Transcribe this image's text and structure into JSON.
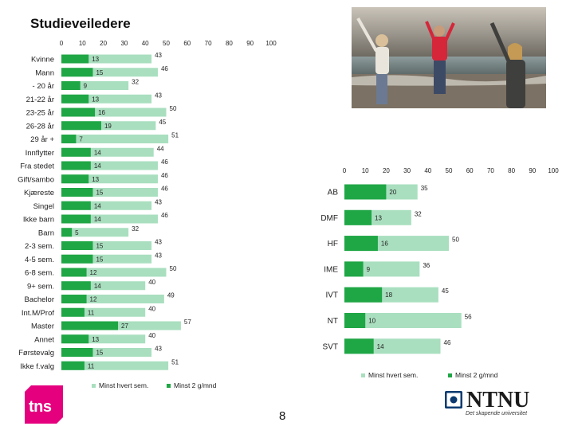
{
  "page_title": "Studieveiledere",
  "page_number": "8",
  "logos": {
    "tns": "tns",
    "ntnu": "NTNU",
    "ntnu_tagline": "Det skapende universitet"
  },
  "colors": {
    "light": "#a9dfbf",
    "dark": "#1fa645"
  },
  "chart_data": [
    {
      "type": "bar",
      "orientation": "horizontal",
      "layout": "overlaid",
      "xlim": [
        0,
        100
      ],
      "xticks": [
        0,
        10,
        20,
        30,
        40,
        50,
        60,
        70,
        80,
        90,
        100
      ],
      "categories": [
        "Kvinne",
        "Mann",
        "- 20 år",
        "21-22 år",
        "23-25 år",
        "26-28 år",
        "29 år +",
        "Innflytter",
        "Fra stedet",
        "Gift/sambo",
        "Kjæreste",
        "Singel",
        "Ikke barn",
        "Barn",
        "2-3 sem.",
        "4-5 sem.",
        "6-8 sem.",
        "9+ sem.",
        "Bachelor",
        "Int.M/Prof",
        "Master",
        "Annet",
        "Førstevalg",
        "Ikke f.valg"
      ],
      "series": [
        {
          "name": "Minst hvert sem.",
          "values": [
            43,
            46,
            32,
            43,
            50,
            45,
            51,
            44,
            46,
            46,
            46,
            43,
            46,
            32,
            43,
            43,
            50,
            40,
            49,
            40,
            57,
            40,
            43,
            51
          ]
        },
        {
          "name": "Minst 2 g/mnd",
          "values": [
            13,
            15,
            9,
            13,
            16,
            19,
            7,
            14,
            14,
            13,
            15,
            14,
            14,
            5,
            15,
            15,
            12,
            14,
            12,
            11,
            27,
            13,
            15,
            11
          ]
        }
      ],
      "legend": [
        "Minst hvert sem.",
        "Minst 2 g/mnd"
      ]
    },
    {
      "type": "bar",
      "orientation": "horizontal",
      "layout": "overlaid",
      "xlim": [
        0,
        100
      ],
      "xticks": [
        0,
        10,
        20,
        30,
        40,
        50,
        60,
        70,
        80,
        90,
        100
      ],
      "categories": [
        "AB",
        "DMF",
        "HF",
        "IME",
        "IVT",
        "NT",
        "SVT"
      ],
      "series": [
        {
          "name": "Minst hvert sem.",
          "values": [
            35,
            32,
            50,
            36,
            45,
            56,
            46
          ]
        },
        {
          "name": "Minst 2 g/mnd",
          "values": [
            20,
            13,
            16,
            9,
            18,
            10,
            14
          ]
        }
      ],
      "legend": [
        "Minst hvert sem.",
        "Minst 2 g/mnd"
      ]
    }
  ]
}
